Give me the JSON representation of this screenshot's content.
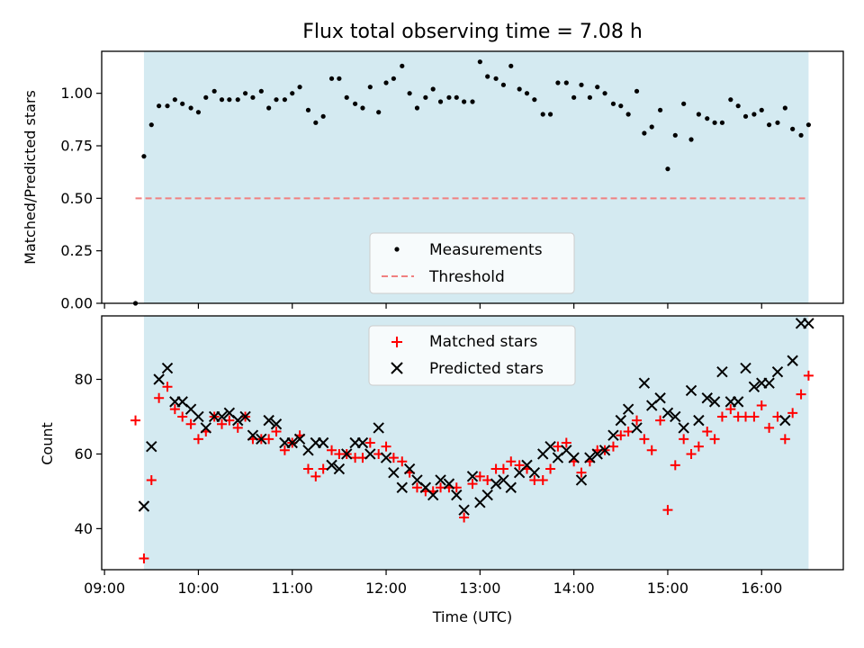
{
  "chart_data": [
    {
      "type": "scatter",
      "title": "Flux total observing time = 7.08 h",
      "xlabel": "",
      "ylabel": "Matched/Predicted stars",
      "xlim": [
        8.97,
        16.87
      ],
      "ylim": [
        0.0,
        1.2
      ],
      "yticks": [
        "0.00",
        "0.25",
        "0.50",
        "0.75",
        "1.00"
      ],
      "ytick_values": [
        0.0,
        0.25,
        0.5,
        0.75,
        1.0
      ],
      "xticks": [
        9,
        10,
        11,
        12,
        13,
        14,
        15,
        16
      ],
      "shaded_span": [
        9.42,
        16.5
      ],
      "shade_color": "#d4eaf1",
      "legend_position": "lower-center",
      "series": [
        {
          "name": "Measurements",
          "kind": "points",
          "color": "#000000",
          "x": [
            9.33,
            9.42,
            9.5,
            9.58,
            9.67,
            9.75,
            9.83,
            9.92,
            10.0,
            10.08,
            10.17,
            10.25,
            10.33,
            10.42,
            10.5,
            10.58,
            10.67,
            10.75,
            10.83,
            10.92,
            11.0,
            11.08,
            11.17,
            11.25,
            11.33,
            11.42,
            11.5,
            11.58,
            11.67,
            11.75,
            11.83,
            11.92,
            12.0,
            12.08,
            12.17,
            12.25,
            12.33,
            12.42,
            12.5,
            12.58,
            12.67,
            12.75,
            12.83,
            12.92,
            13.0,
            13.08,
            13.17,
            13.25,
            13.33,
            13.42,
            13.5,
            13.58,
            13.67,
            13.75,
            13.83,
            13.92,
            14.0,
            14.08,
            14.17,
            14.25,
            14.33,
            14.42,
            14.5,
            14.58,
            14.67,
            14.75,
            14.83,
            14.92,
            15.0,
            15.08,
            15.17,
            15.25,
            15.33,
            15.42,
            15.5,
            15.58,
            15.67,
            15.75,
            15.83,
            15.92,
            16.0,
            16.08,
            16.17,
            16.25,
            16.33,
            16.42,
            16.5
          ],
          "y": [
            0.0,
            0.7,
            0.85,
            0.94,
            0.94,
            0.97,
            0.95,
            0.93,
            0.91,
            0.98,
            1.01,
            0.97,
            0.97,
            0.97,
            1.0,
            0.98,
            1.01,
            0.93,
            0.97,
            0.97,
            1.0,
            1.03,
            0.92,
            0.86,
            0.89,
            1.07,
            1.07,
            0.98,
            0.95,
            0.93,
            1.03,
            0.91,
            1.05,
            1.07,
            1.13,
            1.0,
            0.93,
            0.98,
            1.02,
            0.96,
            0.98,
            0.98,
            0.96,
            0.96,
            1.15,
            1.08,
            1.07,
            1.04,
            1.13,
            1.02,
            1.0,
            0.97,
            0.9,
            0.9,
            1.05,
            1.05,
            0.98,
            1.04,
            0.98,
            1.03,
            1.0,
            0.95,
            0.94,
            0.9,
            1.01,
            0.81,
            0.84,
            0.92,
            0.64,
            0.8,
            0.95,
            0.78,
            0.9,
            0.88,
            0.86,
            0.86,
            0.97,
            0.94,
            0.89,
            0.9,
            0.92,
            0.85,
            0.86,
            0.93,
            0.83,
            0.8,
            0.85
          ]
        },
        {
          "name": "Threshold",
          "kind": "dashed-line",
          "color": "#f08080",
          "x": [
            9.33,
            16.5
          ],
          "y": [
            0.5,
            0.5
          ]
        }
      ]
    },
    {
      "type": "scatter",
      "title": "",
      "xlabel": "Time (UTC)",
      "ylabel": "Count",
      "xlim": [
        8.97,
        16.87
      ],
      "ylim": [
        29,
        97
      ],
      "yticks": [
        "40",
        "60",
        "80"
      ],
      "ytick_values": [
        40,
        60,
        80
      ],
      "xticks": [
        9,
        10,
        11,
        12,
        13,
        14,
        15,
        16
      ],
      "xtick_labels": [
        "09:00",
        "10:00",
        "11:00",
        "12:00",
        "13:00",
        "14:00",
        "15:00",
        "16:00"
      ],
      "shaded_span": [
        9.42,
        16.5
      ],
      "shade_color": "#d4eaf1",
      "legend_position": "upper-center",
      "series": [
        {
          "name": "Matched stars",
          "kind": "plus",
          "color": "#ff0000",
          "x": [
            9.33,
            9.42,
            9.5,
            9.58,
            9.67,
            9.75,
            9.83,
            9.92,
            10.0,
            10.08,
            10.17,
            10.25,
            10.33,
            10.42,
            10.5,
            10.58,
            10.67,
            10.75,
            10.83,
            10.92,
            11.0,
            11.08,
            11.17,
            11.25,
            11.33,
            11.42,
            11.5,
            11.58,
            11.67,
            11.75,
            11.83,
            11.92,
            12.0,
            12.08,
            12.17,
            12.25,
            12.33,
            12.42,
            12.5,
            12.58,
            12.67,
            12.75,
            12.83,
            12.92,
            13.0,
            13.08,
            13.17,
            13.25,
            13.33,
            13.42,
            13.5,
            13.58,
            13.67,
            13.75,
            13.83,
            13.92,
            14.0,
            14.08,
            14.17,
            14.25,
            14.33,
            14.42,
            14.5,
            14.58,
            14.67,
            14.75,
            14.83,
            14.92,
            15.0,
            15.08,
            15.17,
            15.25,
            15.33,
            15.42,
            15.5,
            15.58,
            15.67,
            15.75,
            15.83,
            15.92,
            16.0,
            16.08,
            16.17,
            16.25,
            16.33,
            16.42,
            16.5
          ],
          "y": [
            69,
            32,
            53,
            75,
            78,
            72,
            70,
            68,
            64,
            66,
            70,
            68,
            69,
            67,
            70,
            64,
            64,
            64,
            66,
            61,
            63,
            65,
            56,
            54,
            56,
            61,
            60,
            60,
            59,
            59,
            63,
            60,
            62,
            59,
            58,
            55,
            51,
            50,
            50,
            51,
            51,
            51,
            43,
            52,
            54,
            53,
            56,
            56,
            58,
            57,
            56,
            53,
            53,
            56,
            62,
            63,
            58,
            55,
            58,
            61,
            61,
            62,
            65,
            66,
            69,
            64,
            61,
            69,
            45,
            57,
            64,
            60,
            62,
            66,
            64,
            70,
            72,
            70,
            70,
            70,
            73,
            67,
            70,
            64,
            71,
            76,
            81
          ]
        },
        {
          "name": "Predicted stars",
          "kind": "x",
          "color": "#000000",
          "x": [
            9.33,
            9.42,
            9.5,
            9.58,
            9.67,
            9.75,
            9.83,
            9.92,
            10.0,
            10.08,
            10.17,
            10.25,
            10.33,
            10.42,
            10.5,
            10.58,
            10.67,
            10.75,
            10.83,
            10.92,
            11.0,
            11.08,
            11.17,
            11.25,
            11.33,
            11.42,
            11.5,
            11.58,
            11.67,
            11.75,
            11.83,
            11.92,
            12.0,
            12.08,
            12.17,
            12.25,
            12.33,
            12.42,
            12.5,
            12.58,
            12.67,
            12.75,
            12.83,
            12.92,
            13.0,
            13.08,
            13.17,
            13.25,
            13.33,
            13.42,
            13.5,
            13.58,
            13.67,
            13.75,
            13.83,
            13.92,
            14.0,
            14.08,
            14.17,
            14.25,
            14.33,
            14.42,
            14.5,
            14.58,
            14.67,
            14.75,
            14.83,
            14.92,
            15.0,
            15.08,
            15.17,
            15.25,
            15.33,
            15.42,
            15.5,
            15.58,
            15.67,
            15.75,
            15.83,
            15.92,
            16.0,
            16.08,
            16.17,
            16.25,
            16.33,
            16.42,
            16.5
          ],
          "y": [
            null,
            46,
            62,
            80,
            83,
            74,
            74,
            72,
            70,
            67,
            70,
            70,
            71,
            69,
            70,
            65,
            64,
            69,
            68,
            63,
            63,
            64,
            61,
            63,
            63,
            57,
            56,
            60,
            63,
            63,
            60,
            67,
            59,
            55,
            51,
            56,
            53,
            51,
            49,
            53,
            52,
            49,
            45,
            54,
            47,
            49,
            52,
            53,
            51,
            55,
            57,
            55,
            60,
            62,
            59,
            61,
            59,
            53,
            59,
            60,
            61,
            65,
            69,
            72,
            67,
            79,
            73,
            75,
            71,
            70,
            67,
            77,
            69,
            75,
            74,
            82,
            74,
            74,
            83,
            78,
            79,
            79,
            82,
            69,
            85,
            95,
            95
          ]
        }
      ]
    }
  ]
}
